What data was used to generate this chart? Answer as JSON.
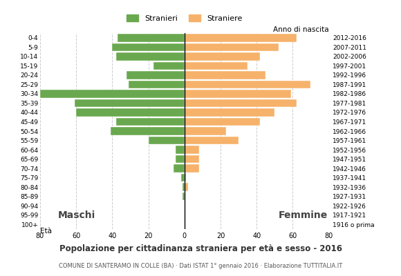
{
  "age_groups": [
    "0-4",
    "5-9",
    "10-14",
    "15-19",
    "20-24",
    "25-29",
    "30-34",
    "35-39",
    "40-44",
    "45-49",
    "50-54",
    "55-59",
    "60-64",
    "65-69",
    "70-74",
    "75-79",
    "80-84",
    "85-89",
    "90-94",
    "95-99",
    "100+"
  ],
  "birth_years": [
    "2012-2016",
    "2007-2011",
    "2002-2006",
    "1997-2001",
    "1992-1996",
    "1987-1991",
    "1982-1986",
    "1977-1981",
    "1972-1976",
    "1967-1971",
    "1962-1966",
    "1957-1961",
    "1952-1956",
    "1947-1951",
    "1942-1946",
    "1937-1941",
    "1932-1936",
    "1927-1931",
    "1922-1926",
    "1917-1921",
    "1916 o prima"
  ],
  "males": [
    37,
    40,
    38,
    17,
    32,
    31,
    80,
    61,
    60,
    38,
    41,
    20,
    5,
    5,
    6,
    2,
    1,
    1,
    0,
    0,
    0
  ],
  "females": [
    62,
    52,
    42,
    35,
    45,
    70,
    59,
    62,
    50,
    42,
    23,
    30,
    8,
    8,
    8,
    1,
    2,
    0,
    0,
    0,
    0
  ],
  "male_color": "#6aa84f",
  "female_color": "#f6b26b",
  "xlim": 80,
  "title": "Popolazione per cittadinanza straniera per età e sesso - 2016",
  "subtitle": "COMUNE DI SANTERAMO IN COLLE (BA) · Dati ISTAT 1° gennaio 2016 · Elaborazione TUTTITALIA.IT",
  "legend_male": "Stranieri",
  "legend_female": "Straniere",
  "label_eta": "Età",
  "label_anno": "Anno di nascita",
  "label_maschi": "Maschi",
  "label_femmine": "Femmine",
  "background_color": "#ffffff",
  "grid_color": "#cccccc"
}
